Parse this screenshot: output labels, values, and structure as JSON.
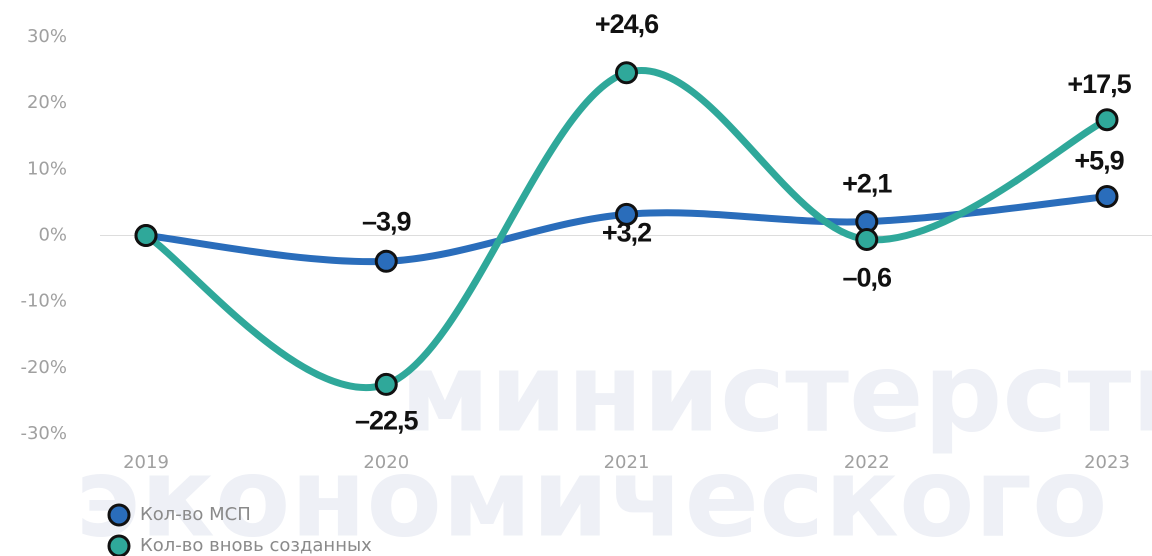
{
  "chart_data": {
    "type": "line",
    "categories": [
      "2019",
      "2020",
      "2021",
      "2022",
      "2023"
    ],
    "series": [
      {
        "name": "Кол-во МСП",
        "color": "#2a6dbb",
        "values": [
          0,
          -3.9,
          3.2,
          2.1,
          5.9
        ],
        "value_labels": [
          null,
          "–3,9",
          "+3,2",
          "+2,1",
          "+5,9"
        ]
      },
      {
        "name": "Кол-во вновь созданных",
        "color": "#2fa89a",
        "values": [
          0,
          -22.5,
          24.6,
          -0.6,
          17.5
        ],
        "value_labels": [
          null,
          "–22,5",
          "+24,6",
          "–0,6",
          "+17,5"
        ]
      }
    ],
    "ylim": [
      -30,
      30
    ],
    "yticks": [
      {
        "value": -30,
        "label": "-30%"
      },
      {
        "value": -20,
        "label": "-20%"
      },
      {
        "value": -10,
        "label": "-10%"
      },
      {
        "value": 0,
        "label": "0%"
      },
      {
        "value": 10,
        "label": "10%"
      },
      {
        "value": 20,
        "label": "20%"
      },
      {
        "value": 30,
        "label": "30%"
      }
    ],
    "grid": false,
    "watermark": [
      "министерство",
      "экономического развит"
    ]
  }
}
